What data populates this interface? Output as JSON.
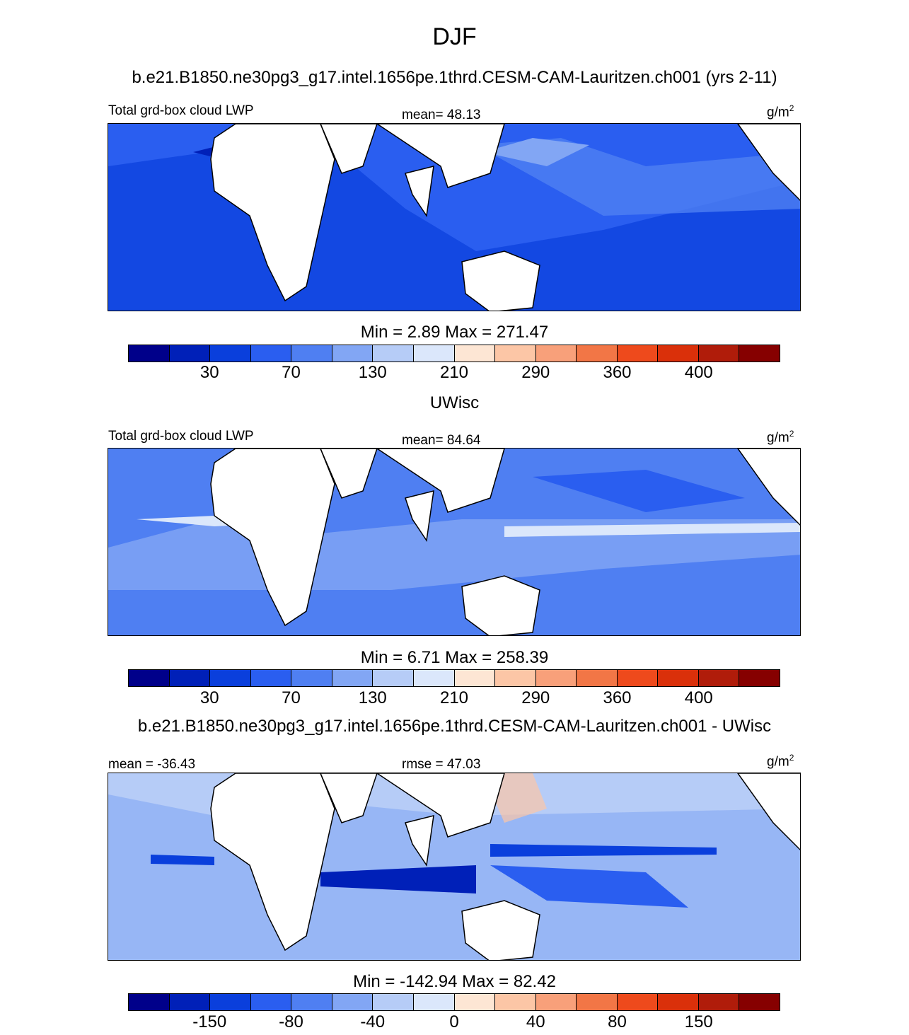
{
  "title": "DJF",
  "case_title": "b.e21.B1850.ne30pg3_g17.intel.1656pe.1thrd.CESM-CAM-Lauritzen.ch001 (yrs 2-11)",
  "panels": [
    {
      "left_label": "Total grd-box cloud LWP",
      "center_label": "mean=  48.13",
      "units": "g/m",
      "units_sup": "2",
      "minmax": "Min =   2.89 Max = 271.47",
      "colorbar_ticks": [
        "30",
        "70",
        "130",
        "210",
        "290",
        "360",
        "400"
      ]
    },
    {
      "panel_title": "UWisc",
      "left_label": "Total grd-box cloud LWP",
      "center_label": "mean=  84.64",
      "units": "g/m",
      "units_sup": "2",
      "minmax": "Min =   6.71 Max = 258.39",
      "colorbar_ticks": [
        "30",
        "70",
        "130",
        "210",
        "290",
        "360",
        "400"
      ]
    },
    {
      "panel_title": "b.e21.B1850.ne30pg3_g17.intel.1656pe.1thrd.CESM-CAM-Lauritzen.ch001 - UWisc",
      "left_label": "mean = -36.43",
      "center_label": "rmse =  47.03",
      "units": "g/m",
      "units_sup": "2",
      "minmax": "Min = -142.94 Max =  82.42",
      "colorbar_ticks": [
        "-150",
        "-80",
        "-40",
        "0",
        "40",
        "80",
        "150"
      ]
    }
  ],
  "colorbar_colors": [
    "#00008a",
    "#0020b8",
    "#0a3fdc",
    "#2a5ef0",
    "#4f7ff2",
    "#82a6f4",
    "#b6ccf7",
    "#dbe7fb",
    "#fde6d4",
    "#fcc6a6",
    "#f8a07a",
    "#f27646",
    "#ee4a1c",
    "#da300a",
    "#b01c0a",
    "#860000"
  ]
}
